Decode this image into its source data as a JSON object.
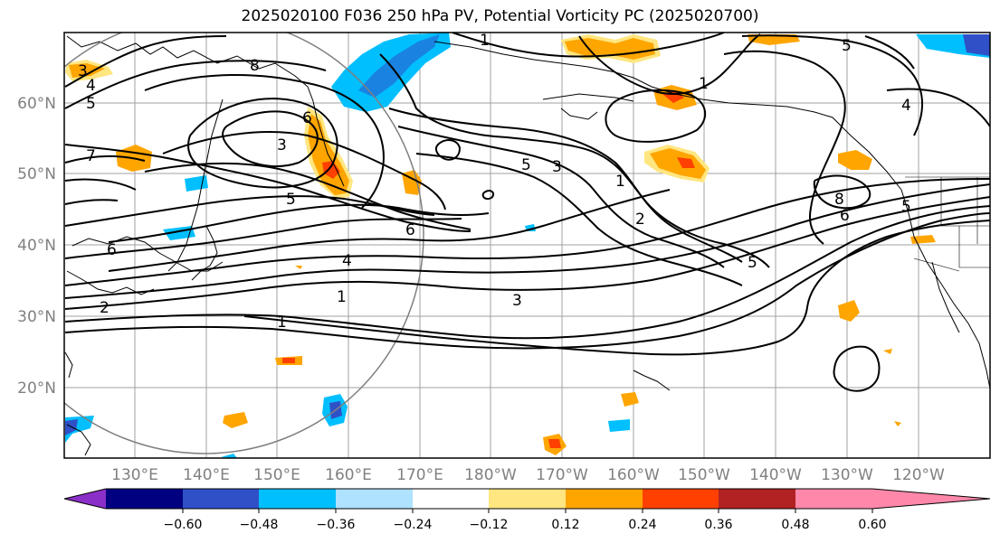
{
  "title": "2025020100 F036 250 hPa PV, Potential Vorticity PC (2025020700)",
  "lat_labels": [
    "60°N",
    "50°N",
    "40°N",
    "30°N",
    "20°N"
  ],
  "lon_labels": [
    "130°E",
    "140°E",
    "150°E",
    "160°E",
    "170°E",
    "180°W",
    "170°W",
    "160°W",
    "150°W",
    "140°W",
    "130°W",
    "120°W"
  ],
  "contour_labels": [
    "8",
    "5",
    "4",
    "3",
    "5",
    "7",
    "3",
    "6",
    "5",
    "6",
    "6",
    "4",
    "2",
    "1",
    "1",
    "3",
    "1",
    "3",
    "2",
    "5",
    "1",
    "8",
    "6",
    "1",
    "5",
    "5",
    "4"
  ],
  "colorbar": {
    "ticks": [
      "−0.60",
      "−0.48",
      "−0.36",
      "−0.24",
      "−0.12",
      "0.12",
      "0.24",
      "0.36",
      "0.48",
      "0.60"
    ],
    "colors": [
      "#8b2fc9",
      "#000080",
      "#3050c8",
      "#00bfff",
      "#aee2ff",
      "#ffffff",
      "#ffe680",
      "#ffa500",
      "#ff4000",
      "#b22222",
      "#ff88aa"
    ]
  },
  "colors": {
    "frame": "#000000",
    "grid": "#a0a0a0",
    "contour": "#000000",
    "positive_light": "#ffe680",
    "positive": "#ffa500",
    "positive_strong": "#ff4000",
    "negative_light": "#aee2ff",
    "negative": "#00bfff",
    "negative_strong": "#3050c8"
  }
}
